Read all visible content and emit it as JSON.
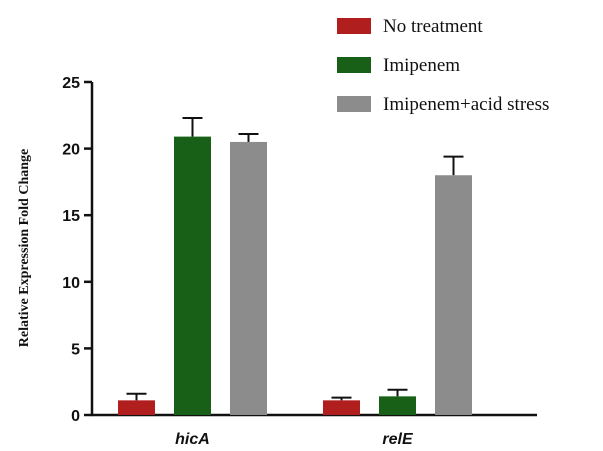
{
  "chart_data": {
    "type": "bar",
    "title": "",
    "xlabel": "",
    "ylabel": "Relative Expression Fold Change",
    "categories": [
      "hicA",
      "relE"
    ],
    "ylim": [
      0,
      25
    ],
    "yticks": [
      0,
      5,
      10,
      15,
      20,
      25
    ],
    "grid": false,
    "legend_position": "top-right",
    "series": [
      {
        "name": "No treatment",
        "color": "#b01e1e",
        "values": [
          1.1,
          1.1
        ],
        "errors": [
          0.5,
          0.2
        ]
      },
      {
        "name": "Imipenem",
        "color": "#186018",
        "values": [
          20.9,
          1.4
        ],
        "errors": [
          1.4,
          0.5
        ]
      },
      {
        "name": "Imipenem+acid stress",
        "color": "#8c8c8c",
        "values": [
          20.5,
          18.0
        ],
        "errors": [
          0.6,
          1.4
        ]
      }
    ]
  }
}
